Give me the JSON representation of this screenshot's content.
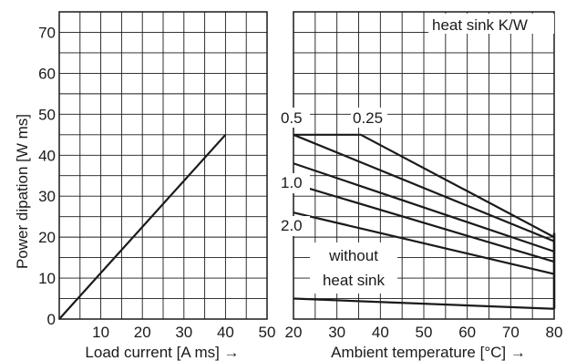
{
  "chart_data": [
    {
      "type": "line",
      "xlabel": "Load current [A ms] →",
      "ylabel": "Power dipation [W ms]",
      "xlim": [
        0,
        50
      ],
      "ylim": [
        0,
        75
      ],
      "x_ticks": [
        "10",
        "20",
        "30",
        "40",
        "50"
      ],
      "y_ticks": [
        "0",
        "10",
        "20",
        "30",
        "40",
        "50",
        "60",
        "70"
      ],
      "grid": true,
      "series": [
        {
          "x": [
            0,
            40
          ],
          "y": [
            0,
            45
          ]
        }
      ]
    },
    {
      "type": "line",
      "xlabel": "Ambient temperature [°C] →",
      "ylabel": "",
      "xlim": [
        20,
        80
      ],
      "ylim": [
        0,
        75
      ],
      "x_ticks": [
        "20",
        "30",
        "40",
        "50",
        "60",
        "70",
        "80"
      ],
      "grid": true,
      "legend_title": "heat sink K/W",
      "series": [
        {
          "name": "0.25",
          "x": [
            20,
            35.5,
            80
          ],
          "y": [
            45,
            45,
            20
          ]
        },
        {
          "name": "0.5",
          "x": [
            20,
            80
          ],
          "y": [
            45,
            19
          ]
        },
        {
          "name": "",
          "x": [
            20,
            80
          ],
          "y": [
            38,
            16.5
          ]
        },
        {
          "name": "1.0",
          "x": [
            20,
            80
          ],
          "y": [
            33,
            14
          ]
        },
        {
          "name": "2.0",
          "x": [
            20,
            80
          ],
          "y": [
            26,
            11
          ]
        },
        {
          "name": "without heat sink",
          "x": [
            20,
            80
          ],
          "y": [
            5,
            2.5
          ]
        }
      ],
      "vertical_line": {
        "x": 80,
        "y": [
          2.5,
          21
        ]
      },
      "labels": {
        "l025": "0.25",
        "l05": "0.5",
        "l10": "1.0",
        "l20": "2.0",
        "without1": "without",
        "without2": "heat sink"
      }
    }
  ]
}
